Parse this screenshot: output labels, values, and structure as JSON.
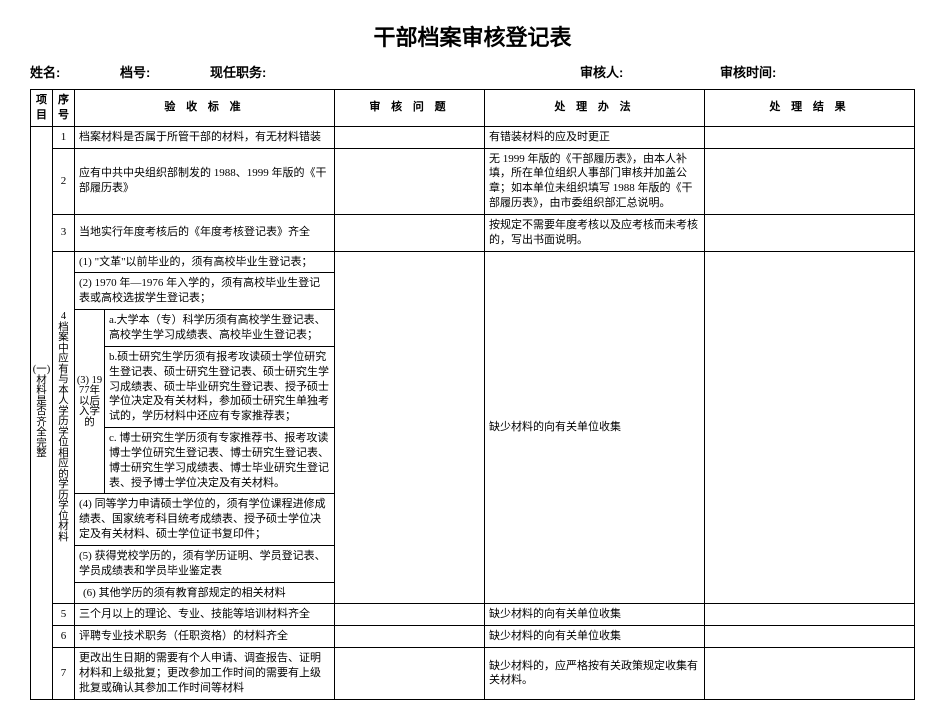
{
  "title": "干部档案审核登记表",
  "header": {
    "name_label": "姓名:",
    "danghao_label": "档号:",
    "zhiwu_label": "现任职务:",
    "reviewer_label": "审核人:",
    "time_label": "审核时间:"
  },
  "columns": {
    "project": "项目",
    "seq": "序号",
    "standard": "验 收 标 准",
    "issue": "审 核 问 题",
    "method": "处 理 办 法",
    "result": "处 理 结 果"
  },
  "category": "(一)材料是否齐全完整",
  "row1": {
    "seq": "1",
    "std": "档案材料是否属于所管干部的材料，有无材料错装",
    "method": "有错装材料的应及时更正"
  },
  "row2": {
    "seq": "2",
    "std": "应有中共中央组织部制发的 1988、1999 年版的《干部履历表》",
    "method": "无 1999 年版的《干部履历表》，由本人补填，所在单位组织人事部门审核并加盖公章；如本单位未组织填写 1988 年版的《干部履历表》，由市委组织部汇总说明。"
  },
  "row3": {
    "seq": "3",
    "std": "当地实行年度考核后的《年度考核登记表》齐全",
    "method": "按规定不需要年度考核以及应考核而未考核的，写出书面说明。"
  },
  "row4": {
    "seq": "4",
    "seq_label": "档案中应有与本人学历学位相应的学历学位材料",
    "sub1": "(1) \"文革\"以前毕业的，须有高校毕业生登记表；",
    "sub2": "(2) 1970 年—1976 年入学的，须有高校毕业生登记表或高校选拔学生登记表；",
    "sub3_label": "(3) 1977年以后入学的",
    "sub3a": "a.大学本（专）科学历须有高校学生登记表、高校学生学习成绩表、高校毕业生登记表；",
    "sub3b": "b.硕士研究生学历须有报考攻读硕士学位研究生登记表、硕士研究生登记表、硕士研究生学习成绩表、硕士毕业研究生登记表、授予硕士学位决定及有关材料，参加硕士研究生单独考试的，学历材料中还应有专家推荐表；",
    "sub3c": "c. 博士研究生学历须有专家推荐书、报考攻读博士学位研究生登记表、博士研究生登记表、博士研究生学习成绩表、博士毕业研究生登记表、授予博士学位决定及有关材料。",
    "sub4": "(4) 同等学力申请硕士学位的，须有学位课程进修成绩表、国家统考科目统考成绩表、授予硕士学位决定及有关材料、硕士学位证书复印件；",
    "sub5": "(5) 获得党校学历的，须有学历证明、学员登记表、学员成绩表和学员毕业鉴定表",
    "sub6": "(6) 其他学历的须有教育部规定的相关材料",
    "method": "缺少材料的向有关单位收集"
  },
  "row5": {
    "seq": "5",
    "std": "三个月以上的理论、专业、技能等培训材料齐全",
    "method": "缺少材料的向有关单位收集"
  },
  "row6": {
    "seq": "6",
    "std": "评聘专业技术职务（任职资格）的材料齐全",
    "method": "缺少材料的向有关单位收集"
  },
  "row7": {
    "seq": "7",
    "std": "更改出生日期的需要有个人申请、调查报告、证明材料和上级批复；更改参加工作时间的需要有上级批复或确认其参加工作时间等材料",
    "method": "缺少材料的，应严格按有关政策规定收集有关材料。"
  }
}
